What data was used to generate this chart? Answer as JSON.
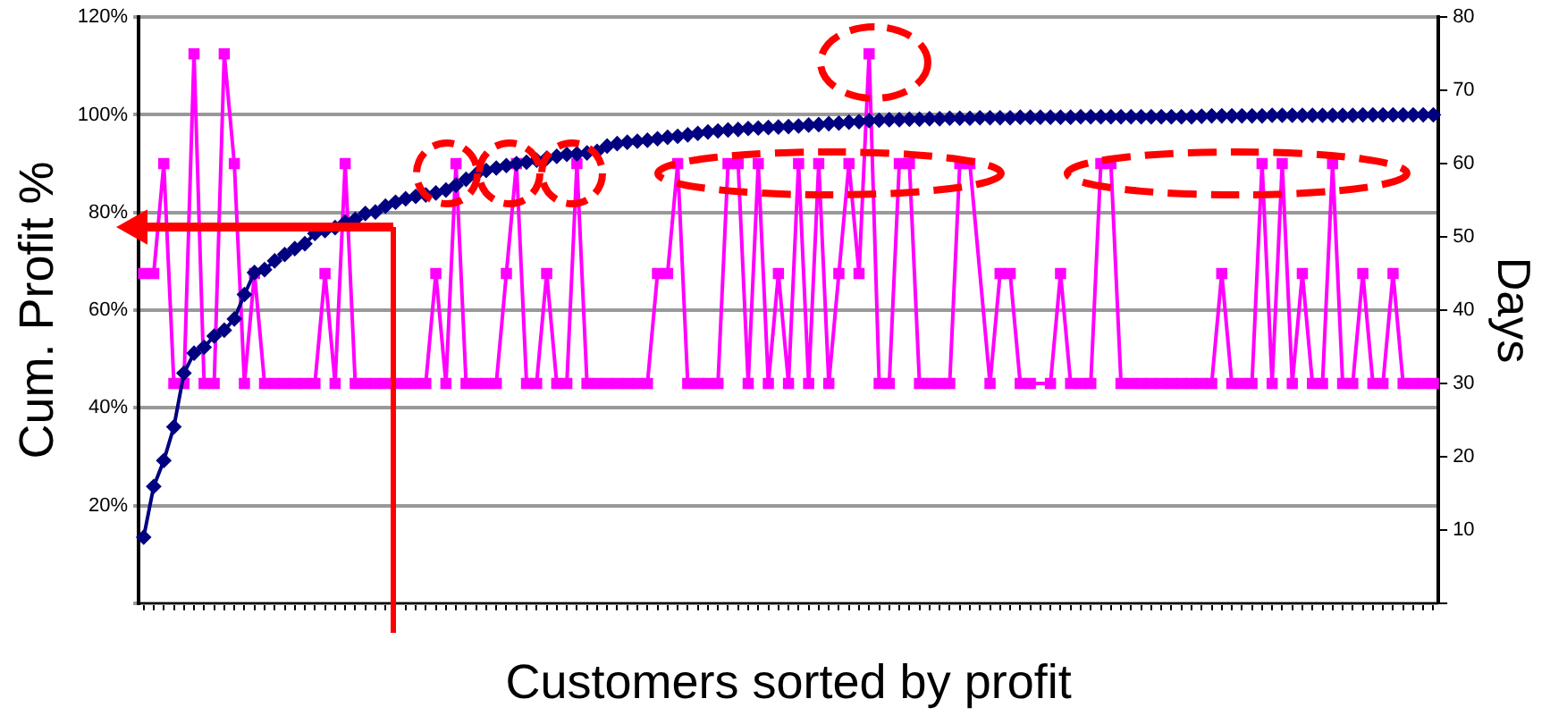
{
  "chart_data": {
    "type": "line",
    "xlabel": "Customers sorted by profit",
    "ylabel": "Cum. Profit %",
    "y2label": "Days",
    "categories": [
      null,
      null,
      null,
      null,
      null,
      null,
      null,
      null,
      null,
      null,
      null,
      null,
      null,
      null,
      null,
      null,
      null,
      null,
      null,
      null,
      null,
      null,
      null,
      null,
      null,
      null,
      null,
      null,
      null,
      null,
      null,
      null,
      null,
      null,
      null,
      null,
      null,
      null,
      null,
      null,
      null,
      null,
      null,
      null,
      null,
      null,
      null,
      null,
      null,
      null,
      null,
      null,
      null,
      null,
      null,
      null,
      null,
      null,
      null,
      null,
      null,
      null,
      null,
      null,
      null,
      null,
      null,
      null,
      null,
      null,
      null,
      null,
      null,
      null,
      null,
      null,
      null,
      null,
      null,
      null,
      null,
      null,
      null,
      null,
      null,
      null,
      null,
      null,
      null,
      null,
      null,
      null,
      null,
      null,
      null,
      null,
      null,
      null,
      null,
      null,
      null,
      null,
      null,
      null,
      null,
      null,
      null,
      null,
      null,
      null,
      null,
      null,
      null,
      null,
      null,
      null,
      null,
      null,
      null,
      null,
      null,
      null,
      null,
      null,
      null,
      null,
      null,
      null,
      null
    ],
    "series": [
      {
        "color": "#000080",
        "marker": "diamond",
        "values": [
          13.5,
          23.9,
          29.2,
          36.1,
          47.1,
          51.2,
          52.4,
          54.7,
          55.9,
          58.2,
          63.2,
          67.7,
          68.3,
          70.1,
          71.4,
          72.6,
          73.6,
          75.7,
          76.3,
          76.9,
          78.0,
          78.6,
          79.8,
          80.1,
          81.3,
          82.1,
          82.8,
          83.3,
          83.6,
          84.0,
          84.6,
          85.6,
          86.8,
          87.8,
          88.6,
          89.1,
          89.6,
          90.0,
          90.3,
          90.7,
          91.1,
          91.5,
          91.9,
          92.0,
          92.2,
          92.5,
          93.6,
          94.1,
          94.4,
          94.6,
          94.8,
          95.1,
          95.4,
          95.6,
          95.9,
          96.2,
          96.5,
          96.7,
          96.9,
          97.0,
          97.2,
          97.3,
          97.4,
          97.5,
          97.6,
          97.7,
          97.9,
          98.0,
          98.2,
          98.3,
          98.5,
          98.6,
          98.8,
          98.9,
          99.0,
          99.0,
          99.1,
          99.1,
          99.2,
          99.2,
          99.3,
          99.3,
          99.3,
          99.4,
          99.4,
          99.4,
          99.4,
          99.5,
          99.5,
          99.5,
          99.5,
          99.5,
          99.5,
          99.6,
          99.6,
          99.6,
          99.6,
          99.6,
          99.6,
          99.6,
          99.6,
          99.6,
          99.6,
          99.6,
          99.6,
          99.7,
          99.8,
          99.8,
          99.8,
          99.8,
          99.8,
          99.8,
          99.9,
          99.9,
          99.9,
          99.9,
          99.9,
          99.9,
          99.9,
          99.9,
          99.9,
          100,
          100,
          100,
          100,
          100,
          100,
          100,
          100
        ]
      },
      {
        "color": "#ff00ff",
        "marker": "square",
        "axis": "y2",
        "values": [
          45,
          45,
          60,
          30,
          30,
          75,
          30,
          30,
          75,
          60,
          30,
          45,
          30,
          30,
          30,
          30,
          30,
          30,
          45,
          30,
          60,
          30,
          30,
          30,
          30,
          30,
          30,
          30,
          30,
          45,
          30,
          60,
          30,
          30,
          30,
          30,
          45,
          60,
          30,
          30,
          45,
          30,
          30,
          60,
          30,
          30,
          30,
          30,
          30,
          30,
          30,
          45,
          45,
          60,
          30,
          30,
          30,
          30,
          60,
          60,
          30,
          60,
          30,
          45,
          30,
          60,
          30,
          60,
          30,
          45,
          60,
          45,
          75,
          30,
          30,
          60,
          60,
          30,
          30,
          30,
          30,
          60,
          60,
          null,
          30,
          45,
          45,
          30,
          30,
          null,
          30,
          45,
          30,
          30,
          30,
          60,
          60,
          30,
          30,
          30,
          30,
          30,
          30,
          30,
          30,
          30,
          30,
          45,
          30,
          30,
          30,
          60,
          30,
          60,
          30,
          45,
          30,
          30,
          60,
          30,
          30,
          45,
          30,
          30,
          45,
          30,
          30,
          30,
          30
        ]
      }
    ],
    "ylim": [
      0,
      120
    ],
    "yticks": [
      {
        "value": 0,
        "label": null
      },
      {
        "value": 20,
        "label": "20%"
      },
      {
        "value": 40,
        "label": "40%"
      },
      {
        "value": 60,
        "label": "60%"
      },
      {
        "value": 80,
        "label": "80%"
      },
      {
        "value": 100,
        "label": "100%"
      },
      {
        "value": 120,
        "label": "120%"
      }
    ],
    "y2lim": [
      0,
      80
    ],
    "y2ticks": [
      {
        "value": 0,
        "label": null
      },
      10,
      20,
      30,
      40,
      50,
      60,
      70,
      80
    ],
    "grid": "y",
    "legend": false
  }
}
